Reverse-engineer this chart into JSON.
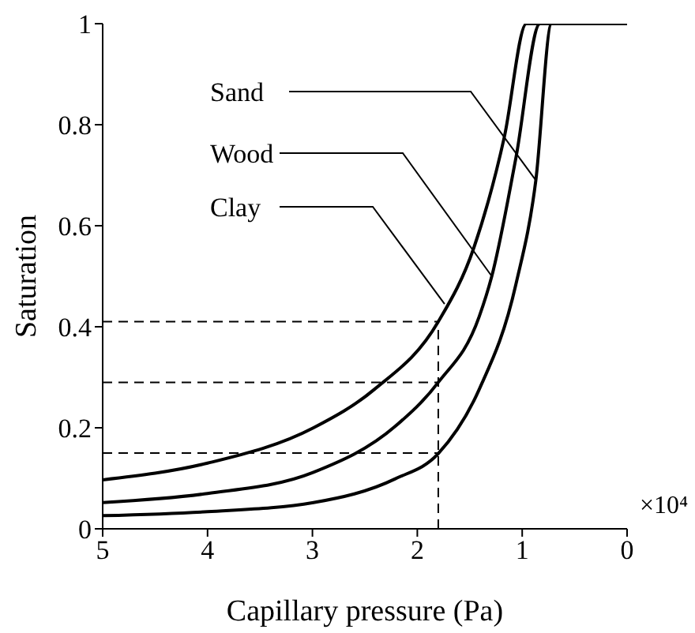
{
  "chart_data": {
    "type": "line",
    "xlabel": "Capillary pressure (Pa)",
    "ylabel": "Saturation",
    "xlim": [
      5,
      0
    ],
    "xticks": [
      5,
      4,
      3,
      2,
      1,
      0
    ],
    "ylim": [
      0,
      1
    ],
    "yticks": [
      0,
      {
        "value": 0.2,
        "label": "0.2"
      },
      {
        "value": 0.4,
        "label": "0.4"
      },
      {
        "value": 0.6,
        "label": "0.6"
      },
      {
        "value": 0.8,
        "label": "0.8"
      },
      1
    ],
    "marker": "none",
    "line_style": "solid",
    "series": [
      {
        "color": "#000000",
        "x": [
          5,
          4,
          2.99,
          2.41,
          1.8,
          1.46,
          1.17,
          0.96,
          0
        ],
        "values": [
          0.097,
          0.13,
          0.2,
          0.276,
          0.41,
          0.557,
          0.776,
          1,
          1
        ]
      },
      {
        "color": "#000000",
        "x": [
          5,
          4,
          2.99,
          2.21,
          1.8,
          1.41,
          1.29,
          1.06,
          0.83,
          0
        ],
        "values": [
          0.052,
          0.07,
          0.112,
          0.203,
          0.29,
          0.42,
          0.5,
          0.734,
          1,
          1
        ]
      },
      {
        "color": "#000000",
        "x": [
          5,
          4,
          2.99,
          2.21,
          1.8,
          1.41,
          1.06,
          0.87,
          0.72,
          0
        ],
        "values": [
          0.026,
          0.034,
          0.052,
          0.099,
          0.149,
          0.276,
          0.484,
          0.69,
          1,
          1
        ]
      }
    ],
    "ref_lines": [
      {
        "axis": "y",
        "value": 0.41,
        "line_style": "dashed",
        "color": "#000000"
      },
      {
        "axis": "y",
        "value": 0.29,
        "line_style": "dashed",
        "color": "#000000"
      },
      {
        "axis": "y",
        "value": 0.15,
        "line_style": "dashed",
        "color": "#000000"
      },
      {
        "axis": "x",
        "value": 1.8,
        "line_style": "dashed",
        "color": "#000000"
      }
    ],
    "annotations": [
      {
        "text": "Sand",
        "x": 0.87,
        "y": 0.69
      },
      {
        "text": "Wood",
        "x": 1.29,
        "y": 0.5
      },
      {
        "text": "Clay",
        "x": 1.74,
        "y": 0.445
      },
      "×10⁴"
    ]
  }
}
